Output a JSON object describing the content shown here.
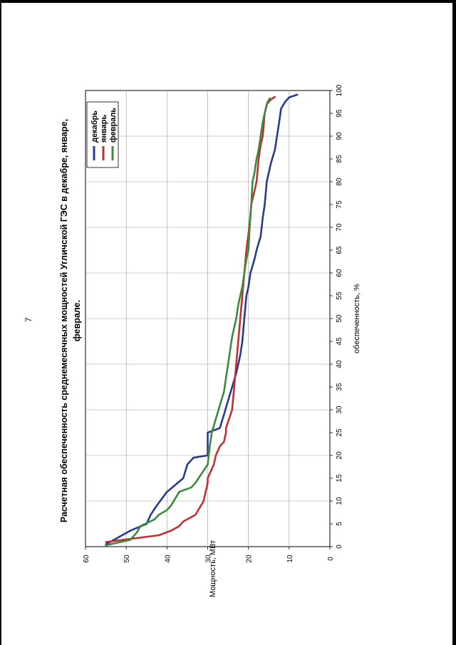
{
  "page": {
    "number": "7"
  },
  "chart_data": {
    "type": "line",
    "title_line1": "Расчетная обеспеченность среднемесячных мощностей Угличской ГЭС в декабре, январе,",
    "title_line2": "феврале.",
    "xlabel": "обеспеченность, %",
    "ylabel": "Мощность, МВт",
    "xlim": [
      0,
      100
    ],
    "ylim": [
      0,
      60
    ],
    "xticks": [
      "0",
      "5",
      "10",
      "15",
      "20",
      "25",
      "30",
      "35",
      "40",
      "45",
      "50",
      "55",
      "60",
      "65",
      "70",
      "75",
      "80",
      "85",
      "90",
      "95",
      "100"
    ],
    "yticks": [
      "0",
      "10",
      "20",
      "30",
      "40",
      "50",
      "60"
    ],
    "legend_position": "top-right",
    "grid": true,
    "series": [
      {
        "name": "декабрь",
        "color": "#2a3a8c",
        "x": [
          0.5,
          2.5,
          3.5,
          5,
          7,
          9,
          12,
          15,
          18,
          19.5,
          20,
          21,
          25,
          26,
          29,
          32,
          35,
          38,
          40,
          42,
          45,
          50,
          55,
          57,
          60,
          63,
          65,
          68,
          72,
          75,
          80,
          84,
          87,
          91,
          94,
          96,
          97.5,
          98.5,
          99.1
        ],
        "y": [
          55,
          51,
          49,
          45,
          44,
          42.5,
          40,
          36,
          35,
          33.5,
          30,
          30,
          30,
          27,
          26,
          25,
          24,
          23,
          22.5,
          22,
          21.5,
          21,
          20.5,
          20,
          19.5,
          18.5,
          18,
          17,
          16.5,
          16,
          15.5,
          14.5,
          13.5,
          12.8,
          12.3,
          12,
          11,
          10,
          8
        ]
      },
      {
        "name": "январь",
        "color": "#c03030",
        "x": [
          1,
          2.5,
          3.5,
          4.5,
          5.5,
          7,
          10,
          12,
          14,
          15,
          18,
          20,
          22,
          23,
          25,
          26,
          30,
          35,
          40,
          45,
          50,
          55,
          60,
          65,
          70,
          75,
          78,
          80,
          85,
          88,
          90,
          93,
          95,
          97,
          98,
          98.6
        ],
        "y": [
          55,
          42,
          39,
          37,
          36,
          33,
          31,
          30.5,
          30,
          30,
          28.5,
          28,
          27,
          26,
          25.5,
          25.5,
          24,
          23.5,
          23,
          22.5,
          22,
          21.5,
          21,
          20.5,
          19.8,
          19.3,
          18.5,
          18,
          17.5,
          17,
          16.5,
          16.2,
          16,
          15.5,
          14.5,
          13.5
        ]
      },
      {
        "name": "февраль",
        "color": "#3d8a3d",
        "x": [
          0.3,
          1.5,
          2,
          3,
          4.5,
          6,
          7,
          8,
          9,
          12,
          13,
          14,
          16,
          18,
          22,
          25,
          28,
          31,
          34,
          37,
          40,
          43,
          46,
          50,
          53,
          55,
          57,
          60,
          63,
          65,
          70,
          75,
          80,
          82,
          85,
          87,
          90,
          93,
          95,
          96,
          97.5,
          98.3
        ],
        "y": [
          55,
          49,
          48.5,
          47.5,
          46.5,
          43,
          42,
          40,
          39,
          37,
          34,
          33,
          31.5,
          30,
          29.5,
          29,
          28,
          27,
          26,
          25.5,
          25,
          24.5,
          24,
          23,
          22.5,
          22,
          21.5,
          21,
          20.5,
          20,
          19.7,
          19.3,
          19,
          18.5,
          18,
          17.5,
          17,
          16.5,
          16,
          15.7,
          15.3,
          14.7
        ]
      }
    ]
  }
}
